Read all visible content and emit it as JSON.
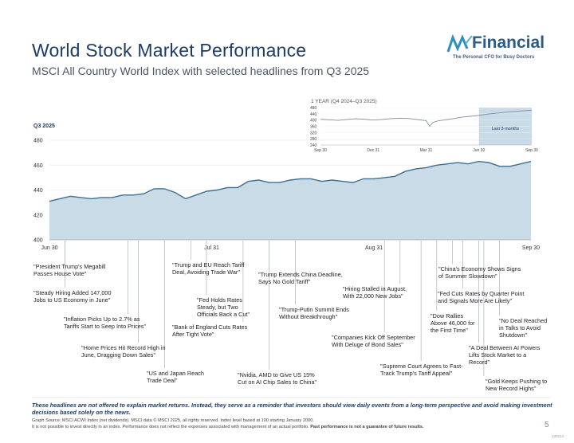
{
  "title": "World Stock Market Performance",
  "subtitle": "MSCI All Country World Index with selected headlines from Q3 2025",
  "logo": {
    "name": "Financial",
    "tagline": "The Personal CFO for Busy Doctors"
  },
  "colors": {
    "area_fill": "#c9dbe6",
    "line": "#3c6f92",
    "title": "#1f3b63",
    "highlight": "#9dbdd3"
  },
  "chart_data": [
    {
      "type": "area",
      "title": "Q3 2025",
      "xlabel": "",
      "ylabel": "",
      "ylim": [
        400,
        480
      ],
      "yticks": [
        400,
        420,
        440,
        460,
        480
      ],
      "x_tick_labels": [
        "Jun 30",
        "Jul 31",
        "Aug 31",
        "Sep 30"
      ],
      "x_tick_days": [
        0,
        31,
        62,
        92
      ],
      "x_days": [
        0,
        2,
        4,
        6,
        8,
        10,
        12,
        14,
        16,
        18,
        20,
        22,
        24,
        26,
        28,
        30,
        32,
        34,
        36,
        38,
        40,
        42,
        44,
        46,
        48,
        50,
        52,
        54,
        56,
        58,
        60,
        62,
        64,
        66,
        68,
        70,
        72,
        74,
        76,
        78,
        80,
        82,
        84,
        86,
        88,
        90,
        92
      ],
      "values": [
        431,
        433,
        435,
        434,
        433,
        434,
        434,
        436,
        436,
        437,
        441,
        441,
        438,
        433,
        436,
        439,
        440,
        442,
        442,
        447,
        448,
        446,
        446,
        448,
        449,
        449,
        447,
        448,
        447,
        446,
        449,
        449,
        450,
        451,
        455,
        457,
        458,
        460,
        461,
        462,
        461,
        463,
        462,
        459,
        459,
        461,
        463
      ],
      "annotations": [
        {
          "text": "\"President Trump's Megabill\nPasses House Vote\"",
          "day": 3
        },
        {
          "text": "\"Steady Hiring Added 147,000\nJobs to US Economy in June\"",
          "day": 3
        },
        {
          "text": "\"Inflation Picks Up to 2.7% as\nTariffs Start to Seep Into Prices\"",
          "day": 15
        },
        {
          "text": "\"Home Prices Hit Record High in\nJune, Dragging Down Sales\"",
          "day": 17
        },
        {
          "text": "\"US and Japan Reach\nTrade Deal\"",
          "day": 22
        },
        {
          "text": "\"Trump and EU Reach Tariff\nDeal, Avoiding Trade War\"",
          "day": 27
        },
        {
          "text": "\"Fed Holds Rates\nSteady, but Two\nOfficials Back a Cut\"",
          "day": 30
        },
        {
          "text": "\"Bank of England Cuts Rates\nAfter Tight Vote\"",
          "day": 37
        },
        {
          "text": "\"Nvidia, AMD to Give US 15%\nCut on AI Chip Sales to China\"",
          "day": 42
        },
        {
          "text": "\"Trump Extends China Deadline,\nSays No Gold Tariff\"",
          "day": 42
        },
        {
          "text": "\"Trump-Putin Summit Ends\nWithout Breakthrough\"",
          "day": 47
        },
        {
          "text": "\"Hiring Stalled in August,\nWith 22,000 New Jobs\"",
          "day": 67
        },
        {
          "text": "\"Companies Kick Off September\nWith Deluge of Bond Sales\"",
          "day": 64
        },
        {
          "text": "\"Supreme Court Agrees to Fast-\nTrack Trump's Tariff Appeal\"",
          "day": 71
        },
        {
          "text": "\"Dow Rallies\nAbove 46,000 for\nthe First Time\"",
          "day": 74
        },
        {
          "text": "\"China's Economy Shows Signs\nof Summer Slowdown\"",
          "day": 77
        },
        {
          "text": "\"Fed Cuts Rates by Quarter Point\nand Signals More Are Likely\"",
          "day": 79
        },
        {
          "text": "\"A Deal Between AI Powers\nLifts Stock Market to a\nRecord\"",
          "day": 82
        },
        {
          "text": "\"Gold Keeps Pushing to\nNew Record Highs\"",
          "day": 83
        },
        {
          "text": "\"No Deal Reached\nin Talks to Avoid\nShutdown\"",
          "day": 86
        }
      ]
    },
    {
      "type": "line",
      "title": "1 YEAR (Q4 2024–Q3 2025)",
      "ylim": [
        240,
        480
      ],
      "yticks": [
        240,
        280,
        320,
        360,
        400,
        440,
        480
      ],
      "x_tick_labels": [
        "Sep 30",
        "Dec 31",
        "Mar 31",
        "Jun 30",
        "Sep 30"
      ],
      "x_tick_months": [
        0,
        3,
        6,
        9,
        12
      ],
      "x_months": [
        0,
        0.5,
        1,
        1.5,
        2,
        2.5,
        3,
        3.5,
        4,
        4.5,
        5,
        5.5,
        6,
        6.2,
        6.4,
        6.7,
        7,
        7.5,
        8,
        8.5,
        9,
        9.5,
        10,
        10.5,
        11,
        11.5,
        12
      ],
      "values": [
        405,
        402,
        398,
        404,
        408,
        405,
        400,
        404,
        409,
        412,
        410,
        403,
        396,
        360,
        385,
        395,
        400,
        408,
        418,
        424,
        430,
        438,
        444,
        450,
        455,
        459,
        463
      ],
      "highlight_label": "Last 3 months"
    }
  ],
  "footer": {
    "note": "These headlines are not offered to explain market returns. Instead, they serve as a reminder that investors should view daily events from a long-term perspective and avoid making investment decisions based solely on the news.",
    "source": "Graph Source: MSCI ACWI Index (net dividends). MSCI data © MSCI 2025, all rights reserved. Index level based at 100 starting January 2000.",
    "disclaimer": "It is not possible to invest directly in an index. Performance does not reflect the expenses associated with management of an actual portfolio.",
    "disclaimer_bold": "Past performance is not a guarantee of future results.",
    "page": "5",
    "code": "135213"
  }
}
